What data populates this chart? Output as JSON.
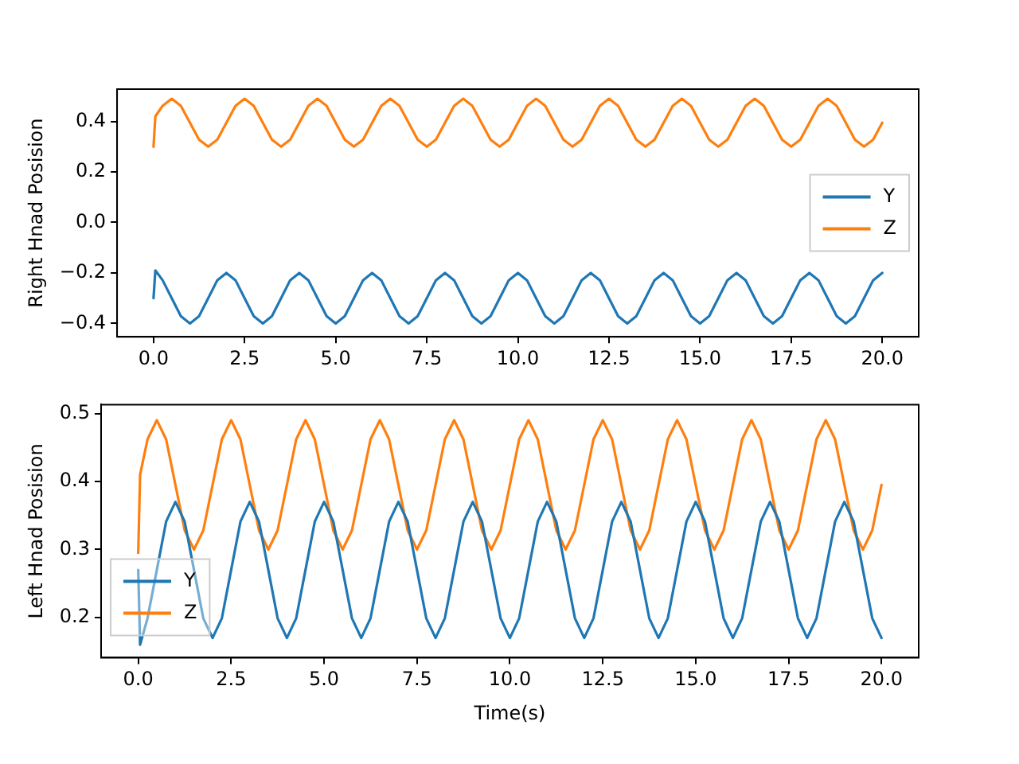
{
  "chart_data": [
    {
      "type": "line",
      "ylabel": "Right Hnad Posision",
      "legend": "right",
      "grid": false,
      "marker": "none",
      "line_style": "solid",
      "xlim": [
        -1,
        21
      ],
      "xticks": [
        {
          "value": 0,
          "label": "0.0"
        },
        {
          "value": 2.5,
          "label": "2.5"
        },
        {
          "value": 5,
          "label": "5.0"
        },
        {
          "value": 7.5,
          "label": "7.5"
        },
        {
          "value": 10,
          "label": "10.0"
        },
        {
          "value": 12.5,
          "label": "12.5"
        },
        {
          "value": 15,
          "label": "15.0"
        },
        {
          "value": 17.5,
          "label": "17.5"
        },
        {
          "value": 20,
          "label": "20.0"
        }
      ],
      "ylim": [
        -0.453,
        0.528
      ],
      "yticks": [
        {
          "value": -0.4,
          "label": "−0.4"
        },
        {
          "value": -0.2,
          "label": "−0.2"
        },
        {
          "value": 0,
          "label": "0.0"
        },
        {
          "value": 0.2,
          "label": "0.2"
        },
        {
          "value": 0.4,
          "label": "0.4"
        }
      ],
      "x": [
        0,
        0.05,
        0.25,
        0.5,
        0.75,
        1,
        1.25,
        1.5,
        1.75,
        2,
        2.25,
        2.5,
        2.75,
        3,
        3.25,
        3.5,
        3.75,
        4,
        4.25,
        4.5,
        4.75,
        5,
        5.25,
        5.5,
        5.75,
        6,
        6.25,
        6.5,
        6.75,
        7,
        7.25,
        7.5,
        7.75,
        8,
        8.25,
        8.5,
        8.75,
        9,
        9.25,
        9.5,
        9.75,
        10,
        10.25,
        10.5,
        10.75,
        11,
        11.25,
        11.5,
        11.75,
        12,
        12.25,
        12.5,
        12.75,
        13,
        13.25,
        13.5,
        13.75,
        14,
        14.25,
        14.5,
        14.75,
        15,
        15.25,
        15.5,
        15.75,
        16,
        16.25,
        16.5,
        16.75,
        17,
        17.25,
        17.5,
        17.75,
        18,
        18.25,
        18.5,
        18.75,
        19,
        19.25,
        19.5,
        19.75,
        20
      ],
      "series": [
        {
          "name": "Y",
          "color": "#1f77b4",
          "values": [
            -0.3,
            -0.19,
            -0.229,
            -0.3,
            -0.371,
            -0.4,
            -0.371,
            -0.3,
            -0.229,
            -0.2,
            -0.229,
            -0.3,
            -0.371,
            -0.4,
            -0.371,
            -0.3,
            -0.229,
            -0.2,
            -0.229,
            -0.3,
            -0.371,
            -0.4,
            -0.371,
            -0.3,
            -0.229,
            -0.2,
            -0.229,
            -0.3,
            -0.371,
            -0.4,
            -0.371,
            -0.3,
            -0.229,
            -0.2,
            -0.229,
            -0.3,
            -0.371,
            -0.4,
            -0.371,
            -0.3,
            -0.229,
            -0.2,
            -0.229,
            -0.3,
            -0.371,
            -0.4,
            -0.371,
            -0.3,
            -0.229,
            -0.2,
            -0.229,
            -0.3,
            -0.371,
            -0.4,
            -0.371,
            -0.3,
            -0.229,
            -0.2,
            -0.229,
            -0.3,
            -0.371,
            -0.4,
            -0.371,
            -0.3,
            -0.229,
            -0.2,
            -0.229,
            -0.3,
            -0.371,
            -0.4,
            -0.371,
            -0.3,
            -0.229,
            -0.2,
            -0.229,
            -0.3,
            -0.371,
            -0.4,
            -0.371,
            -0.3,
            -0.229,
            -0.2
          ]
        },
        {
          "name": "Z",
          "color": "#ff7f0e",
          "values": [
            0.3,
            0.42,
            0.462,
            0.49,
            0.462,
            0.395,
            0.328,
            0.3,
            0.328,
            0.395,
            0.462,
            0.49,
            0.462,
            0.395,
            0.328,
            0.3,
            0.328,
            0.395,
            0.462,
            0.49,
            0.462,
            0.395,
            0.328,
            0.3,
            0.328,
            0.395,
            0.462,
            0.49,
            0.462,
            0.395,
            0.328,
            0.3,
            0.328,
            0.395,
            0.462,
            0.49,
            0.462,
            0.395,
            0.328,
            0.3,
            0.328,
            0.395,
            0.462,
            0.49,
            0.462,
            0.395,
            0.328,
            0.3,
            0.328,
            0.395,
            0.462,
            0.49,
            0.462,
            0.395,
            0.328,
            0.3,
            0.328,
            0.395,
            0.462,
            0.49,
            0.462,
            0.395,
            0.328,
            0.3,
            0.328,
            0.395,
            0.462,
            0.49,
            0.462,
            0.395,
            0.328,
            0.3,
            0.328,
            0.395,
            0.462,
            0.49,
            0.462,
            0.395,
            0.328,
            0.3,
            0.328,
            0.395
          ]
        }
      ]
    },
    {
      "type": "line",
      "xlabel": "Time(s)",
      "ylabel": "Left Hnad Posision",
      "legend": "bottom left",
      "grid": false,
      "marker": "none",
      "line_style": "solid",
      "xlim": [
        -1,
        21
      ],
      "xticks": [
        {
          "value": 0,
          "label": "0.0"
        },
        {
          "value": 2.5,
          "label": "2.5"
        },
        {
          "value": 5,
          "label": "5.0"
        },
        {
          "value": 7.5,
          "label": "7.5"
        },
        {
          "value": 10,
          "label": "10.0"
        },
        {
          "value": 12.5,
          "label": "12.5"
        },
        {
          "value": 15,
          "label": "15.0"
        },
        {
          "value": 17.5,
          "label": "17.5"
        },
        {
          "value": 20,
          "label": "20.0"
        }
      ],
      "ylim": [
        0.141,
        0.513
      ],
      "yticks": [
        {
          "value": 0.2,
          "label": "0.2"
        },
        {
          "value": 0.3,
          "label": "0.3"
        },
        {
          "value": 0.4,
          "label": "0.4"
        },
        {
          "value": 0.5,
          "label": "0.5"
        }
      ],
      "x": [
        0,
        0.05,
        0.25,
        0.5,
        0.75,
        1,
        1.25,
        1.5,
        1.75,
        2,
        2.25,
        2.5,
        2.75,
        3,
        3.25,
        3.5,
        3.75,
        4,
        4.25,
        4.5,
        4.75,
        5,
        5.25,
        5.5,
        5.75,
        6,
        6.25,
        6.5,
        6.75,
        7,
        7.25,
        7.5,
        7.75,
        8,
        8.25,
        8.5,
        8.75,
        9,
        9.25,
        9.5,
        9.75,
        10,
        10.25,
        10.5,
        10.75,
        11,
        11.25,
        11.5,
        11.75,
        12,
        12.25,
        12.5,
        12.75,
        13,
        13.25,
        13.5,
        13.75,
        14,
        14.25,
        14.5,
        14.75,
        15,
        15.25,
        15.5,
        15.75,
        16,
        16.25,
        16.5,
        16.75,
        17,
        17.25,
        17.5,
        17.75,
        18,
        18.25,
        18.5,
        18.75,
        19,
        19.25,
        19.5,
        19.75,
        20
      ],
      "series": [
        {
          "name": "Y",
          "color": "#1f77b4",
          "values": [
            0.27,
            0.16,
            0.199,
            0.27,
            0.341,
            0.37,
            0.341,
            0.27,
            0.199,
            0.17,
            0.199,
            0.27,
            0.341,
            0.37,
            0.341,
            0.27,
            0.199,
            0.17,
            0.199,
            0.27,
            0.341,
            0.37,
            0.341,
            0.27,
            0.199,
            0.17,
            0.199,
            0.27,
            0.341,
            0.37,
            0.341,
            0.27,
            0.199,
            0.17,
            0.199,
            0.27,
            0.341,
            0.37,
            0.341,
            0.27,
            0.199,
            0.17,
            0.199,
            0.27,
            0.341,
            0.37,
            0.341,
            0.27,
            0.199,
            0.17,
            0.199,
            0.27,
            0.341,
            0.37,
            0.341,
            0.27,
            0.199,
            0.17,
            0.199,
            0.27,
            0.341,
            0.37,
            0.341,
            0.27,
            0.199,
            0.17,
            0.199,
            0.27,
            0.341,
            0.37,
            0.341,
            0.27,
            0.199,
            0.17,
            0.199,
            0.27,
            0.341,
            0.37,
            0.341,
            0.27,
            0.199,
            0.17
          ]
        },
        {
          "name": "Z",
          "color": "#ff7f0e",
          "values": [
            0.295,
            0.41,
            0.462,
            0.49,
            0.462,
            0.395,
            0.328,
            0.3,
            0.328,
            0.395,
            0.462,
            0.49,
            0.462,
            0.395,
            0.328,
            0.3,
            0.328,
            0.395,
            0.462,
            0.49,
            0.462,
            0.395,
            0.328,
            0.3,
            0.328,
            0.395,
            0.462,
            0.49,
            0.462,
            0.395,
            0.328,
            0.3,
            0.328,
            0.395,
            0.462,
            0.49,
            0.462,
            0.395,
            0.328,
            0.3,
            0.328,
            0.395,
            0.462,
            0.49,
            0.462,
            0.395,
            0.328,
            0.3,
            0.328,
            0.395,
            0.462,
            0.49,
            0.462,
            0.395,
            0.328,
            0.3,
            0.328,
            0.395,
            0.462,
            0.49,
            0.462,
            0.395,
            0.328,
            0.3,
            0.328,
            0.395,
            0.462,
            0.49,
            0.462,
            0.395,
            0.328,
            0.3,
            0.328,
            0.395,
            0.462,
            0.49,
            0.462,
            0.395,
            0.328,
            0.3,
            0.328,
            0.395
          ]
        }
      ]
    }
  ]
}
